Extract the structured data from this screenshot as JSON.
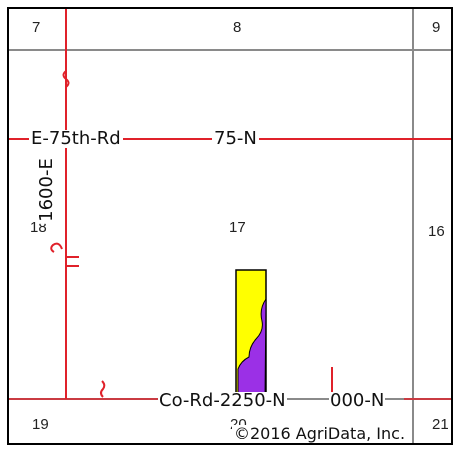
{
  "map": {
    "sections": [
      "7",
      "8",
      "9",
      "18",
      "17",
      "16",
      "19",
      "20",
      "21"
    ],
    "roads": {
      "road_75th": "E-75th-Rd",
      "road_75n": "75-N",
      "road_1600e": "1600-E",
      "road_co_rd": "Co-Rd-2250-N",
      "road_000n": "000-N"
    },
    "copyright": "©2016 AgriData, Inc."
  },
  "colors": {
    "road": "#e0212a",
    "section_line": "#8a8a8a",
    "field_yellow": "#ffff00",
    "field_purple": "#9b30e6"
  }
}
